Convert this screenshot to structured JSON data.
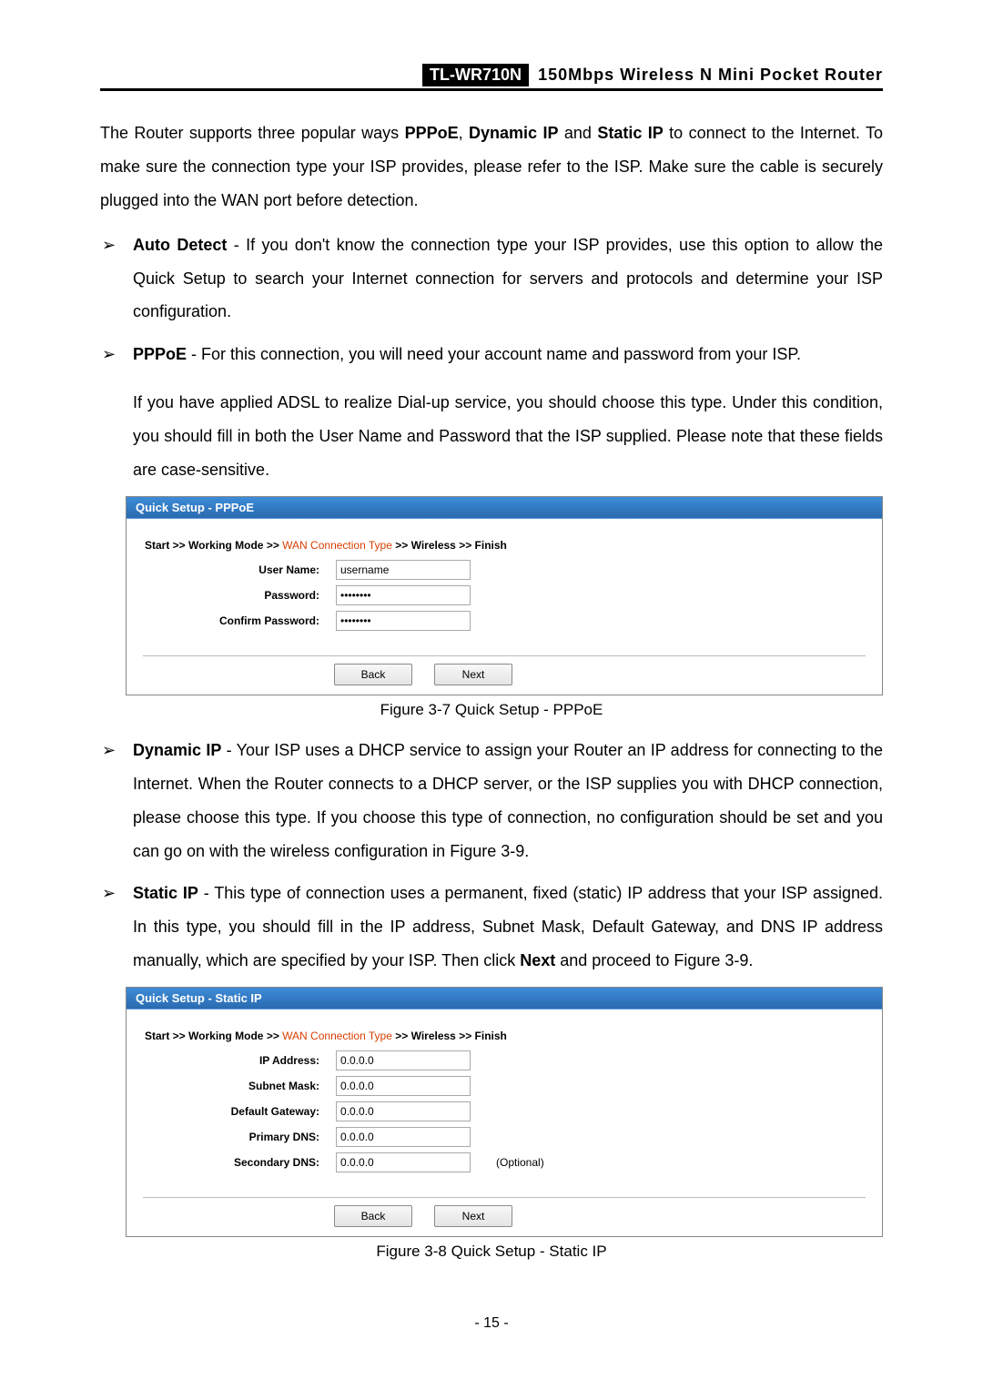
{
  "header": {
    "model": "TL-WR710N",
    "subtitle": "150Mbps  Wireless  N  Mini  Pocket  Router"
  },
  "intro": {
    "pre": "The Router supports three popular ways ",
    "b1": "PPPoE",
    "sep1": ", ",
    "b2": "Dynamic IP",
    "sep2": " and ",
    "b3": "Static IP",
    "post": " to connect to the Internet. To make sure the connection type your ISP provides, please refer to the ISP. Make sure the cable is securely plugged into the WAN port before detection."
  },
  "items": {
    "auto_detect": {
      "title": "Auto Detect",
      "body": " - If you don't know the connection type your ISP provides, use this option to allow the Quick Setup to search your Internet connection for servers and protocols and determine your ISP configuration."
    },
    "pppoe": {
      "title": "PPPoE",
      "body": " - For this connection, you will need your account name and password from your ISP.",
      "detail": "If you have applied ADSL to realize Dial-up service, you should choose this type. Under this condition, you should fill in both the User Name and Password that the ISP supplied. Please note that these fields are case-sensitive."
    },
    "dynamic_ip": {
      "title": "Dynamic IP",
      "body_pre": " - Your ISP uses a DHCP service to assign your Router an IP address for connecting to the Internet. When the Router connects to a DHCP server, or the ISP supplies you with DHCP connection, please choose this type. If you choose this type of connection, no configuration should be set and you can go on with the wireless configuration in ",
      "fig_ref": "Figure 3-9",
      "body_post": "."
    },
    "static_ip": {
      "title": "Static IP",
      "body_pre": " - This type of connection uses a permanent, fixed (static) IP address that your ISP assigned. In this type, you should fill in the IP address, Subnet Mask, Default Gateway, and DNS IP address manually, which are specified by your ISP. Then click ",
      "next_b": "Next",
      "body_mid": " and proceed to ",
      "fig_ref": "Figure 3-9",
      "body_post": "."
    }
  },
  "fig1": {
    "title": "Quick Setup - PPPoE",
    "bc": {
      "start": "Start",
      "wm": "Working Mode",
      "wct": "WAN Connection Type",
      "wl": "Wireless",
      "fin": "Finish",
      "sep": " >> "
    },
    "labels": {
      "user": "User Name:",
      "pass": "Password:",
      "cpass": "Confirm Password:"
    },
    "values": {
      "user": "username",
      "pass": "••••••••",
      "cpass": "••••••••"
    },
    "back": "Back",
    "next": "Next",
    "caption": "Figure 3-7   Quick Setup - PPPoE"
  },
  "fig2": {
    "title": "Quick Setup - Static IP",
    "labels": {
      "ip": "IP Address:",
      "subnet": "Subnet Mask:",
      "gateway": "Default Gateway:",
      "pdns": "Primary DNS:",
      "sdns": "Secondary DNS:"
    },
    "values": {
      "ip": "0.0.0.0",
      "subnet": "0.0.0.0",
      "gateway": "0.0.0.0",
      "pdns": "0.0.0.0",
      "sdns": "0.0.0.0"
    },
    "optional": "(Optional)",
    "back": "Back",
    "next": "Next",
    "caption": "Figure 3-8   Quick Setup - Static IP"
  },
  "page_num": "- 15 -"
}
